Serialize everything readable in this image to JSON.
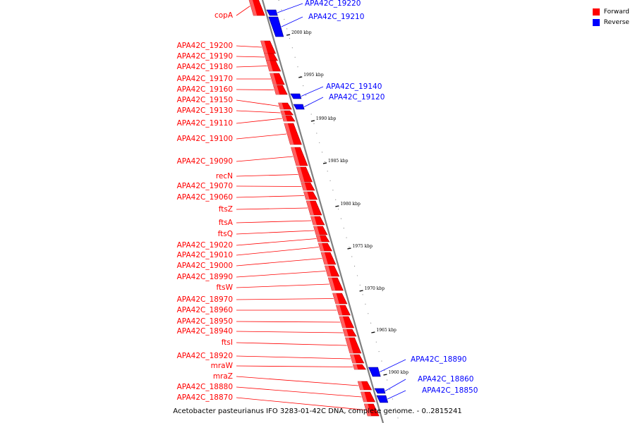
{
  "legend": {
    "items": [
      {
        "label": "Forward",
        "color": "#ff0000"
      },
      {
        "label": "Reverse",
        "color": "#0000ff"
      }
    ]
  },
  "caption": "Acetobacter pasteurianus IFO 3283-01-42C DNA, complete genome. - 0..2815241",
  "colors": {
    "forward": "#ff0000",
    "reverse": "#0000ff",
    "backbone": "#808080"
  },
  "ticks": [
    "2000 kbp",
    "1995 kbp",
    "1990 kbp",
    "1985 kbp",
    "1980 kbp",
    "1975 kbp",
    "1970 kbp",
    "1965 kbp",
    "1960 kbp"
  ],
  "forward_genes": [
    "copA",
    "APA42C_19200",
    "APA42C_19190",
    "APA42C_19180",
    "APA42C_19170",
    "APA42C_19160",
    "APA42C_19150",
    "APA42C_19130",
    "APA42C_19110",
    "APA42C_19100",
    "APA42C_19090",
    "recN",
    "APA42C_19070",
    "APA42C_19060",
    "ftsZ",
    "ftsA",
    "ftsQ",
    "APA42C_19020",
    "APA42C_19010",
    "APA42C_19000",
    "APA42C_18990",
    "ftsW",
    "APA42C_18970",
    "APA42C_18960",
    "APA42C_18950",
    "APA42C_18940",
    "ftsI",
    "APA42C_18920",
    "mraW",
    "mraZ",
    "APA42C_18880",
    "APA42C_18870"
  ],
  "reverse_genes": [
    "APA42C_19220",
    "APA42C_19210",
    "APA42C_19140",
    "APA42C_19120",
    "APA42C_18890",
    "APA42C_18860",
    "APA42C_18850"
  ]
}
